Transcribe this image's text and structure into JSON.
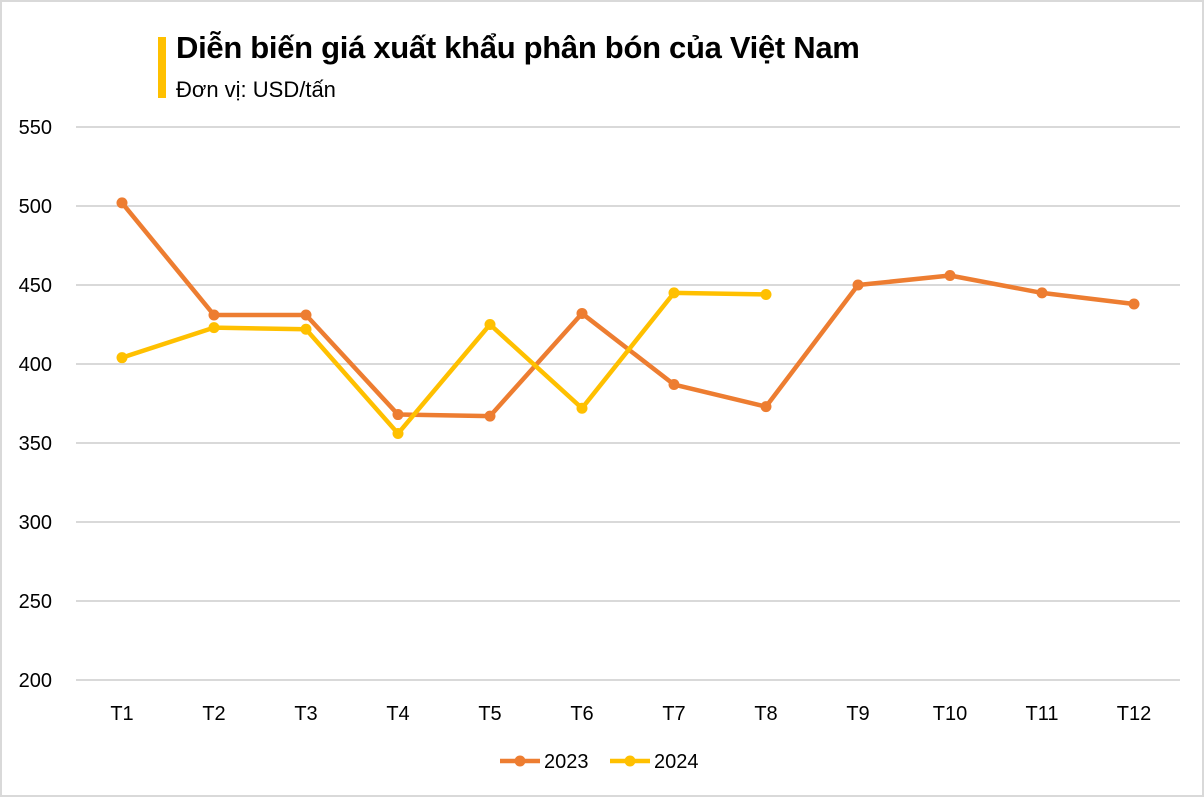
{
  "header": {
    "title": "Diễn biến giá xuất khẩu phân bón của Việt Nam",
    "subtitle": "Đơn vị: USD/tấn",
    "accent_color": "#ffc000"
  },
  "chart_data": {
    "type": "line",
    "title": "Diễn biến giá xuất khẩu phân bón của Việt Nam",
    "subtitle": "Đơn vị: USD/tấn",
    "xlabel": "",
    "ylabel": "USD/tấn",
    "categories": [
      "T1",
      "T2",
      "T3",
      "T4",
      "T5",
      "T6",
      "T7",
      "T8",
      "T9",
      "T10",
      "T11",
      "T12"
    ],
    "series": [
      {
        "name": "2023",
        "color": "#ed7d31",
        "values": [
          502,
          431,
          431,
          368,
          367,
          432,
          387,
          373,
          450,
          456,
          445,
          438
        ]
      },
      {
        "name": "2024",
        "color": "#ffc000",
        "values": [
          404,
          423,
          422,
          356,
          425,
          372,
          445,
          444,
          null,
          null,
          null,
          null
        ]
      }
    ],
    "ylim": [
      200,
      550
    ],
    "yticks": [
      200,
      250,
      300,
      350,
      400,
      450,
      500,
      550
    ],
    "grid": true,
    "legend_position": "bottom"
  },
  "legend": {
    "items": [
      {
        "label": "2023",
        "color": "#ed7d31"
      },
      {
        "label": "2024",
        "color": "#ffc000"
      }
    ]
  }
}
